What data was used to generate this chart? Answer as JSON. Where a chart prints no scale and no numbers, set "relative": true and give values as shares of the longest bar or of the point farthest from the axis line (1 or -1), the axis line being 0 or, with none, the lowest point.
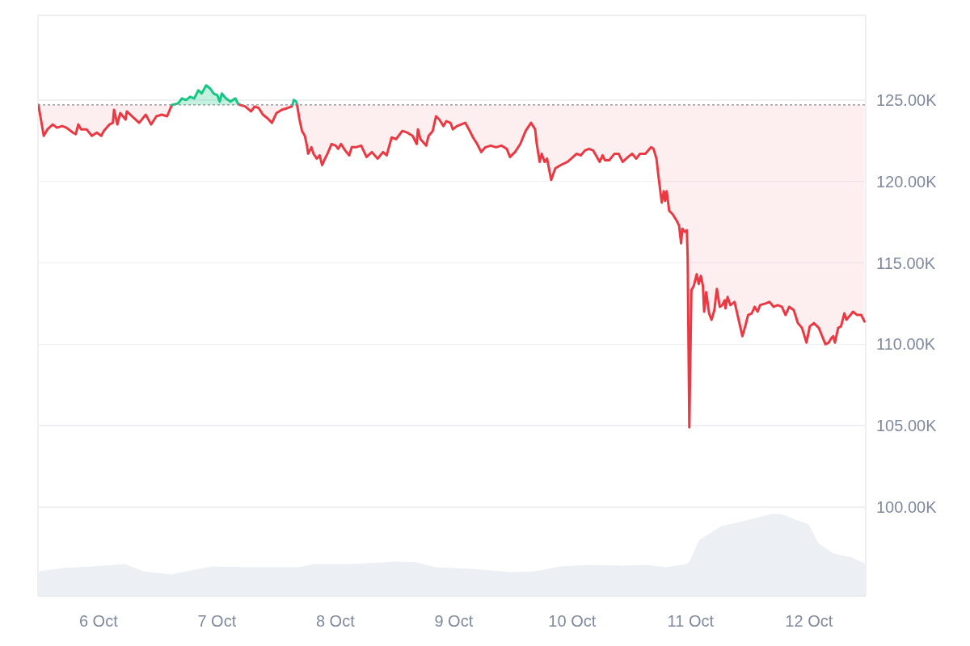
{
  "chart_data": [
    {
      "type": "line",
      "series": [
        {
          "color": "#ea3943",
          "x": [
            "--10-05T11:50",
            "--10-05T12:55",
            "--10-05T13:40",
            "--10-05T14:45",
            "--10-05T15:35",
            "--10-05T16:40",
            "--10-05T17:30",
            "--10-05T18:50",
            "--10-05T19:25",
            "--10-05T19:55",
            "--10-05T20:30",
            "--10-05T21:35",
            "--10-05T22:40",
            "--10-05T23:40",
            "--10-06T00:35",
            "--10-06T01:05",
            "--10-06T02:15",
            "--10-06T02:55",
            "--10-06T03:10",
            "--10-06T03:50",
            "--10-06T04:25",
            "--10-06T05:30",
            "--10-06T05:45",
            "--10-06T06:50",
            "--10-06T08:15",
            "--10-06T09:35",
            "--10-06T10:40",
            "--10-06T11:45",
            "--10-06T12:50",
            "--10-06T13:55",
            "--10-06T14:45",
            "--10-06T15:00"
          ],
          "values": [
            124.7,
            122.8,
            123.2,
            123.5,
            123.3,
            123.4,
            123.3,
            123.0,
            122.9,
            123.5,
            123.2,
            123.2,
            122.8,
            123.0,
            122.8,
            123.1,
            123.5,
            123.6,
            124.4,
            123.5,
            124.2,
            123.8,
            124.3,
            124.0,
            123.6,
            124.1,
            123.5,
            124.0,
            124.1,
            124.0,
            124.6,
            124.7
          ],
          "lower": [
            124.7,
            122.8,
            123.2,
            123.5,
            123.3,
            123.4,
            123.3,
            123.0,
            122.9,
            123.5,
            123.2,
            123.2,
            122.8,
            123.0,
            122.8,
            123.1,
            123.5,
            123.6,
            124.4,
            123.5,
            124.2,
            123.8,
            124.3,
            124.0,
            123.6,
            124.1,
            123.5,
            124.0,
            124.1,
            124.0,
            124.6,
            124.7
          ],
          "upper": [
            124.7,
            124.7,
            124.7,
            124.7,
            124.7,
            124.7,
            124.7,
            124.7,
            124.7,
            124.7,
            124.7,
            124.7,
            124.7,
            124.7,
            124.7,
            124.7,
            124.7,
            124.7,
            124.7,
            124.7,
            124.7,
            124.7,
            124.7,
            124.7,
            124.7,
            124.7,
            124.7,
            124.7,
            124.7,
            124.7,
            124.7,
            124.7
          ]
        },
        {
          "color": "#16c784",
          "x": [
            "--10-06T15:00",
            "--10-06T16:10",
            "--10-06T16:55",
            "--10-06T17:45",
            "--10-06T18:35",
            "--10-06T19:25",
            "--10-06T20:15",
            "--10-06T20:55",
            "--10-06T21:50",
            "--10-06T22:40",
            "--10-06T23:20",
            "--10-07T00:05",
            "--10-07T00:35",
            "--10-07T01:00",
            "--10-07T01:50",
            "--10-07T02:45",
            "--10-07T03:45",
            "--10-07T04:15",
            "--10-07T04:40"
          ],
          "values": [
            124.7,
            124.8,
            125.1,
            125.0,
            125.2,
            125.1,
            125.6,
            125.4,
            125.9,
            125.7,
            125.4,
            125.3,
            124.9,
            125.4,
            125.1,
            124.9,
            125.1,
            124.8,
            124.7
          ],
          "lower": [
            124.7,
            124.7,
            124.7,
            124.7,
            124.7,
            124.7,
            124.7,
            124.7,
            124.7,
            124.7,
            124.7,
            124.7,
            124.7,
            124.7,
            124.7,
            124.7,
            124.7,
            124.7,
            124.7
          ],
          "upper": [
            124.7,
            124.8,
            125.1,
            125.0,
            125.2,
            125.1,
            125.6,
            125.4,
            125.9,
            125.7,
            125.4,
            125.3,
            124.9,
            125.4,
            125.1,
            124.9,
            125.1,
            124.8,
            124.7
          ]
        },
        {
          "color": "#ea3943",
          "x": [
            "--10-07T04:40",
            "--10-07T05:45",
            "--10-07T06:55",
            "--10-07T07:40",
            "--10-07T08:30",
            "--10-07T09:20",
            "--10-07T10:10",
            "--10-07T11:10",
            "--10-07T12:05",
            "--10-07T13:10",
            "--10-07T14:15",
            "--10-07T15:10",
            "--10-07T15:20"
          ],
          "values": [
            124.7,
            124.6,
            124.3,
            124.6,
            124.5,
            124.1,
            123.9,
            123.6,
            124.2,
            124.4,
            124.5,
            124.6,
            124.7
          ],
          "lower": [
            124.7,
            124.6,
            124.3,
            124.6,
            124.5,
            124.1,
            123.9,
            123.6,
            124.2,
            124.4,
            124.5,
            124.6,
            124.7
          ],
          "upper": [
            124.7,
            124.7,
            124.7,
            124.7,
            124.7,
            124.7,
            124.7,
            124.7,
            124.7,
            124.7,
            124.7,
            124.7,
            124.7
          ]
        },
        {
          "color": "#16c784",
          "x": [
            "--10-07T15:20",
            "--10-07T15:35",
            "--10-07T16:05",
            "--10-07T16:15"
          ],
          "values": [
            124.7,
            125.0,
            124.9,
            124.7
          ]
        },
        {
          "color": "#ea3943",
          "x": [
            "--10-07T16:15",
            "--10-07T16:45",
            "--10-07T17:15",
            "--10-07T17:50",
            "--10-07T18:15",
            "--10-07T18:30",
            "--10-07T19:10",
            "--10-07T19:35",
            "--10-07T20:15",
            "--10-07T20:50",
            "--10-07T21:20",
            "--10-07T21:55",
            "--10-07T22:25",
            "--10-07T23:15",
            "--10-08T00:05",
            "--10-08T00:35",
            "--10-08T01:10",
            "--10-08T02:00",
            "--10-08T02:50",
            "--10-08T03:20",
            "--10-08T04:10",
            "--10-08T05:15",
            "--10-08T06:20",
            "--10-08T07:25",
            "--10-08T08:35",
            "--10-08T09:40",
            "--10-08T10:25",
            "--10-08T11:25",
            "--10-08T12:20",
            "--10-08T13:35",
            "--10-08T14:35",
            "--10-08T15:40",
            "--10-08T16:30",
            "--10-08T16:45",
            "--10-08T17:15",
            "--10-08T18:25",
            "--10-08T18:55",
            "--10-08T19:45",
            "--10-08T20:25",
            "--10-08T21:05",
            "--10-08T21:55",
            "--10-08T22:30",
            "--10-08T23:20",
            "--10-08T23:50",
            "--10-09T00:40",
            "--10-09T01:30",
            "--10-09T02:20",
            "--10-09T03:05",
            "--10-09T03:55",
            "--10-09T04:45",
            "--10-09T05:35",
            "--10-09T06:25",
            "--10-09T07:30",
            "--10-09T08:35",
            "--10-09T09:40",
            "--10-09T10:45",
            "--10-09T11:25",
            "--10-09T12:25",
            "--10-09T13:30",
            "--10-09T14:35",
            "--10-09T15:40",
            "--10-09T16:30",
            "--10-09T16:50",
            "--10-09T17:25",
            "--10-09T17:50",
            "--10-09T18:25",
            "--10-09T18:55",
            "--10-09T19:45",
            "--10-09T20:35",
            "--10-09T21:40",
            "--10-09T23:05",
            "--10-09T23:50",
            "--10-10T00:55",
            "--10-10T01:45",
            "--10-10T02:35",
            "--10-10T03:25",
            "--10-10T04:15",
            "--10-10T05:35",
            "--10-10T06:10",
            "--10-10T06:40",
            "--10-10T07:30",
            "--10-10T08:35",
            "--10-10T09:25",
            "--10-10T10:15",
            "--10-10T11:20",
            "--10-10T12:10",
            "--10-10T13:00",
            "--10-10T13:45",
            "--10-10T14:50",
            "--10-10T16:00",
            "--10-10T16:30",
            "--10-10T17:05",
            "--10-10T17:35",
            "--10-10T18:10",
            "--10-10T18:35",
            "--10-10T18:50",
            "--10-10T19:10",
            "--10-10T19:40",
            "--10-10T20:20",
            "--10-10T21:10",
            "--10-10T21:40",
            "--10-10T22:05",
            "--10-10T22:20",
            "--10-10T22:50",
            "--10-10T23:15",
            "--10-10T23:25",
            "--10-10T23:45",
            "--10-11T00:10",
            "--10-11T00:40",
            "--10-11T01:15",
            "--10-11T01:40",
            "--10-11T02:05",
            "--10-11T02:30",
            "--10-11T02:45",
            "--10-11T03:10",
            "--10-11T03:45",
            "--10-11T04:15",
            "--10-11T04:50",
            "--10-11T05:20",
            "--10-11T05:55",
            "--10-11T06:25",
            "--10-11T06:55",
            "--10-11T07:05",
            "--10-11T07:30",
            "--10-11T08:05",
            "--10-11T08:55",
            "--10-11T09:45",
            "--10-11T10:30",
            "--10-11T11:05",
            "--10-11T11:40",
            "--10-11T12:25",
            "--10-11T13:00",
            "--10-11T13:35",
            "--10-11T14:05",
            "--10-11T15:10",
            "--10-11T16:00",
            "--10-11T16:50",
            "--10-11T17:40",
            "--10-11T18:30",
            "--10-11T19:15",
            "--10-11T20:00",
            "--10-11T20:55",
            "--10-11T21:45",
            "--10-11T22:35",
            "--10-11T23:30",
            "--10-12T00:10",
            "--10-12T01:00",
            "--10-12T02:00",
            "--10-12T02:40",
            "--10-12T03:20",
            "--10-12T04:00",
            "--10-12T04:35",
            "--10-12T04:55",
            "--10-12T05:15",
            "--10-12T05:55",
            "--10-12T06:30",
            "--10-12T07:10",
            "--10-12T07:35",
            "--10-12T08:25",
            "--10-12T08:55",
            "--10-12T09:45",
            "--10-12T10:35",
            "--10-12T11:15"
          ],
          "values": [
            124.7,
            123.8,
            123.1,
            122.8,
            122.2,
            121.7,
            122.1,
            121.7,
            121.4,
            121.6,
            121.0,
            121.4,
            121.7,
            122.3,
            122.2,
            122.0,
            122.3,
            121.9,
            121.6,
            122.1,
            122.1,
            122.2,
            121.5,
            121.8,
            121.4,
            121.8,
            121.6,
            122.7,
            122.6,
            123.1,
            123.0,
            122.8,
            122.3,
            123.2,
            122.6,
            122.2,
            122.8,
            123.1,
            124.0,
            123.8,
            123.4,
            123.7,
            123.6,
            123.2,
            123.4,
            123.5,
            123.6,
            123.2,
            122.7,
            122.3,
            121.8,
            122.1,
            122.2,
            122.1,
            122.2,
            122.0,
            121.5,
            121.8,
            122.3,
            123.1,
            123.6,
            123.2,
            122.3,
            121.2,
            121.7,
            121.2,
            121.4,
            120.1,
            120.8,
            121.0,
            121.2,
            121.4,
            121.7,
            121.6,
            121.9,
            122.0,
            121.9,
            121.2,
            121.6,
            121.3,
            121.3,
            121.7,
            121.7,
            121.2,
            121.5,
            121.7,
            121.4,
            121.7,
            121.7,
            122.1,
            122.0,
            121.4,
            120.1,
            118.7,
            119.4,
            118.8,
            119.4,
            118.2,
            118.0,
            117.6,
            117.3,
            116.2,
            117.1,
            116.9,
            117.0,
            115.3,
            104.9,
            113.3,
            113.6,
            114.3,
            113.7,
            114.2,
            113.6,
            112.0,
            113.2,
            111.9,
            111.5,
            112.1,
            113.4,
            112.3,
            112.4,
            112.7,
            112.2,
            112.9,
            112.4,
            112.6,
            111.5,
            110.5,
            111.1,
            111.8,
            111.9,
            112.3,
            112.0,
            112.4,
            112.5,
            112.6,
            112.3,
            112.4,
            112.3,
            111.8,
            112.3,
            112.1,
            111.3,
            111.0,
            110.1,
            111.1,
            111.3,
            111.0,
            110.5,
            110.0,
            110.1,
            110.4,
            110.5,
            110.1,
            111.0,
            111.1,
            111.9,
            111.5,
            111.8,
            112.0,
            111.8,
            111.8,
            111.4
          ],
          "lower": [
            124.7,
            123.8,
            123.1,
            122.8,
            122.2,
            121.7,
            122.1,
            121.7,
            121.4,
            121.6,
            121.0,
            121.4,
            121.7,
            122.3,
            122.2,
            122.0,
            122.3,
            121.9,
            121.6,
            122.1,
            122.1,
            122.2,
            121.5,
            121.8,
            121.4,
            121.8,
            121.6,
            122.7,
            122.6,
            123.1,
            123.0,
            122.8,
            122.3,
            123.2,
            122.6,
            122.2,
            122.8,
            123.1,
            124.0,
            123.8,
            123.4,
            123.7,
            123.6,
            123.2,
            123.4,
            123.5,
            123.6,
            123.2,
            122.7,
            122.3,
            121.8,
            122.1,
            122.2,
            122.1,
            122.2,
            122.0,
            121.5,
            121.8,
            122.3,
            123.1,
            123.6,
            123.2,
            122.3,
            121.2,
            121.7,
            121.2,
            121.4,
            120.1,
            120.8,
            121.0,
            121.2,
            121.4,
            121.7,
            121.6,
            121.9,
            122.0,
            121.9,
            121.2,
            121.6,
            121.3,
            121.3,
            121.7,
            121.7,
            121.2,
            121.5,
            121.7,
            121.4,
            121.7,
            121.7,
            122.1,
            122.0,
            121.4,
            120.1,
            118.7,
            119.4,
            118.8,
            119.4,
            118.2,
            118.0,
            117.6,
            117.3,
            116.2,
            117.1,
            116.9,
            117.0,
            115.3,
            104.9,
            113.3,
            113.6,
            114.3,
            113.7,
            114.2,
            113.6,
            112.0,
            113.2,
            111.9,
            111.5,
            112.1,
            113.4,
            112.3,
            112.4,
            112.7,
            112.2,
            112.9,
            112.4,
            112.6,
            111.5,
            110.5,
            111.1,
            111.8,
            111.9,
            112.3,
            112.0,
            112.4,
            112.5,
            112.6,
            112.3,
            112.4,
            112.3,
            111.8,
            112.3,
            112.1,
            111.3,
            111.0,
            110.1,
            111.1,
            111.3,
            111.0,
            110.5,
            110.0,
            110.1,
            110.4,
            110.5,
            110.1,
            111.0,
            111.1,
            111.9,
            111.5,
            111.8,
            112.0,
            111.8,
            111.8,
            111.4
          ],
          "upper": [
            124.7,
            124.7,
            124.7,
            124.7,
            124.7,
            124.7,
            124.7,
            124.7,
            124.7,
            124.7,
            124.7,
            124.7,
            124.7,
            124.7,
            124.7,
            124.7,
            124.7,
            124.7,
            124.7,
            124.7,
            124.7,
            124.7,
            124.7,
            124.7,
            124.7,
            124.7,
            124.7,
            124.7,
            124.7,
            124.7,
            124.7,
            124.7,
            124.7,
            124.7,
            124.7,
            124.7,
            124.7,
            124.7,
            124.7,
            124.7,
            124.7,
            124.7,
            124.7,
            124.7,
            124.7,
            124.7,
            124.7,
            124.7,
            124.7,
            124.7,
            124.7,
            124.7,
            124.7,
            124.7,
            124.7,
            124.7,
            124.7,
            124.7,
            124.7,
            124.7,
            124.7,
            124.7,
            124.7,
            124.7,
            124.7,
            124.7,
            124.7,
            124.7,
            124.7,
            124.7,
            124.7,
            124.7,
            124.7,
            124.7,
            124.7,
            124.7,
            124.7,
            124.7,
            124.7,
            124.7,
            124.7,
            124.7,
            124.7,
            124.7,
            124.7,
            124.7,
            124.7,
            124.7,
            124.7,
            124.7,
            124.7,
            124.7,
            124.7,
            124.7,
            124.7,
            124.7,
            124.7,
            124.7,
            124.7,
            124.7,
            124.7,
            124.7,
            124.7,
            124.7,
            124.7,
            124.7,
            124.7,
            124.7,
            124.7,
            124.7,
            124.7,
            124.7,
            124.7,
            124.7,
            124.7,
            124.7,
            124.7,
            124.7,
            124.7,
            124.7,
            124.7,
            124.7,
            124.7,
            124.7,
            124.7,
            124.7,
            124.7,
            124.7,
            124.7,
            124.7,
            124.7,
            124.7,
            124.7,
            124.7,
            124.7,
            124.7,
            124.7,
            124.7,
            124.7,
            124.7,
            124.7,
            124.7,
            124.7,
            124.7,
            124.7,
            124.7,
            124.7,
            124.7,
            124.7,
            124.7,
            124.7,
            124.7,
            124.7,
            124.7,
            124.7,
            124.7,
            124.7,
            124.7,
            124.7,
            124.7,
            124.7,
            124.7,
            124.7
          ]
        }
      ],
      "xlim": [
        "--10-05T11:45",
        "--10-12T11:30"
      ],
      "ylim": [
        99.8,
        130.2
      ],
      "yticks": [
        {
          "value": 100,
          "label": "100.00K"
        },
        {
          "value": 105,
          "label": "105.00K"
        },
        {
          "value": 110,
          "label": "110.00K"
        },
        {
          "value": 115,
          "label": "115.00K"
        },
        {
          "value": 120,
          "label": "120.00K"
        },
        {
          "value": 125,
          "label": "125.00K"
        }
      ],
      "ref_lines": [
        {
          "axis": "y",
          "value": 124.7,
          "color": "#858b97",
          "line_style": "dotted"
        }
      ],
      "grid": "y",
      "tick_labels": "y"
    },
    {
      "type": "area",
      "relative": true,
      "color": "#eceff3",
      "x": [
        "--10-05T11:50",
        "--10-05T16:45",
        "--10-05T22:55",
        "--10-06T05:20",
        "--10-06T09:05",
        "--10-06T14:45",
        "--10-06T17:55",
        "--10-06T22:55",
        "--10-07T06:30",
        "--10-07T16:35",
        "--10-07T19:45",
        "--10-08T02:40",
        "--10-08T12:45",
        "--10-08T16:30",
        "--10-08T20:20",
        "--10-09T03:50",
        "--10-09T11:25",
        "--10-09T16:30",
        "--10-09T21:30",
        "--10-10T03:50",
        "--10-10T10:05",
        "--10-10T15:10",
        "--10-10T18:55",
        "--10-10T23:10",
        "--10-10T23:55",
        "--10-11T01:50",
        "--10-11T06:15",
        "--10-11T11:20",
        "--10-11T16:20",
        "--10-11T18:15",
        "--10-11T23:55",
        "--10-12T01:50",
        "--10-12T05:00",
        "--10-12T08:45",
        "--10-12T11:30"
      ],
      "values": [
        0.29,
        0.33,
        0.35,
        0.38,
        0.29,
        0.25,
        0.29,
        0.35,
        0.34,
        0.34,
        0.38,
        0.38,
        0.41,
        0.4,
        0.34,
        0.32,
        0.28,
        0.29,
        0.35,
        0.37,
        0.36,
        0.37,
        0.34,
        0.38,
        0.42,
        0.68,
        0.85,
        0.92,
        1,
        1,
        0.87,
        0.64,
        0.51,
        0.46,
        0.38
      ],
      "xlim": [
        "--10-05T11:45",
        "--10-12T11:30"
      ],
      "xticks": [
        {
          "value": "--10-06",
          "label": "6 Oct"
        },
        {
          "value": "--10-07",
          "label": "7 Oct"
        },
        {
          "value": "--10-08",
          "label": "8 Oct"
        },
        {
          "value": "--10-09",
          "label": "9 Oct"
        },
        {
          "value": "--10-10",
          "label": "10 Oct"
        },
        {
          "value": "--10-11",
          "label": "11 Oct"
        },
        {
          "value": "--10-12",
          "label": "12 Oct"
        }
      ],
      "tick_labels": "x"
    }
  ]
}
